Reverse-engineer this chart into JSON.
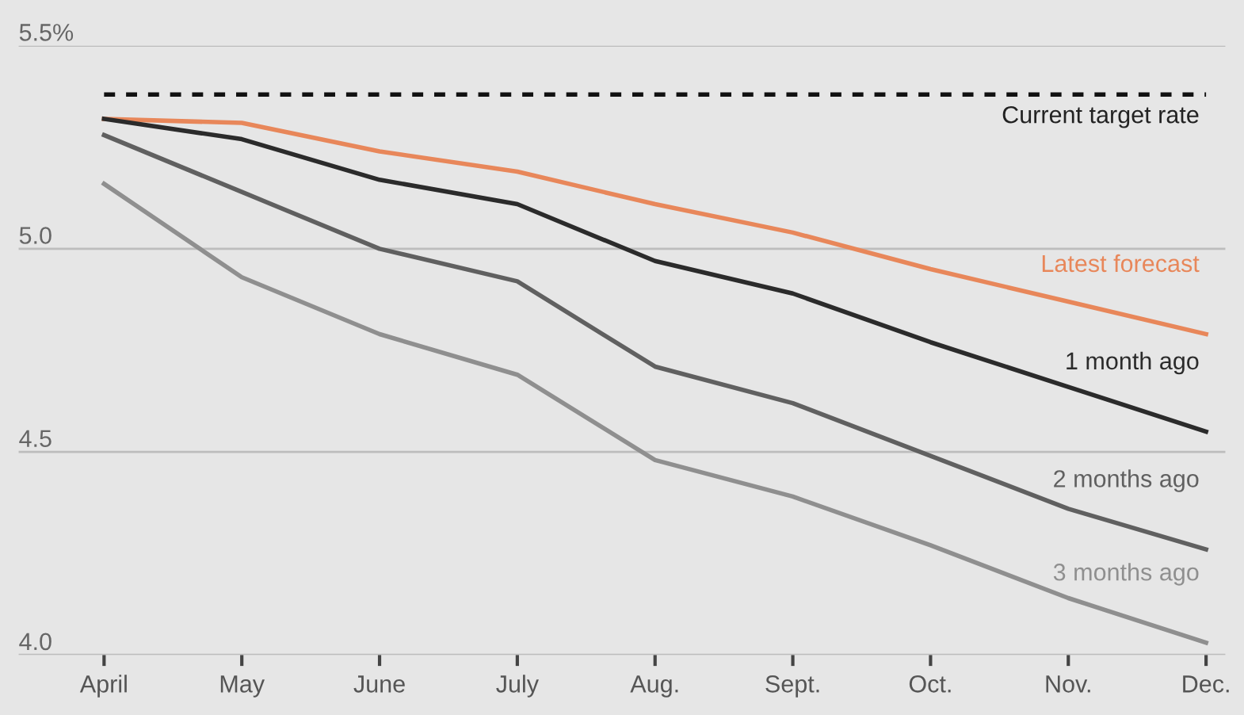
{
  "chart_data": {
    "type": "line",
    "categories": [
      "April",
      "May",
      "June",
      "July",
      "Aug.",
      "Sept.",
      "Oct.",
      "Nov.",
      "Dec."
    ],
    "series": [
      {
        "name": "Latest forecast",
        "color": "#e8875a",
        "values": [
          5.32,
          5.31,
          5.24,
          5.19,
          5.11,
          5.04,
          4.95,
          4.87,
          4.79
        ]
      },
      {
        "name": "1 month ago",
        "color": "#2b2b2b",
        "values": [
          5.32,
          5.27,
          5.17,
          5.11,
          4.97,
          4.89,
          4.77,
          4.66,
          4.55
        ]
      },
      {
        "name": "2 months ago",
        "color": "#606060",
        "values": [
          5.28,
          5.14,
          5.0,
          4.92,
          4.71,
          4.62,
          4.49,
          4.36,
          4.26
        ]
      },
      {
        "name": "3 months ago",
        "color": "#8f8f8f",
        "values": [
          5.16,
          4.93,
          4.79,
          4.69,
          4.48,
          4.39,
          4.27,
          4.14,
          4.03
        ]
      }
    ],
    "ylim": [
      4.0,
      5.5
    ],
    "yticks": [
      {
        "value": 4.0,
        "label": "4.0"
      },
      4.5,
      {
        "value": 5.0,
        "label": "5.0"
      },
      {
        "value": 5.5,
        "label": "5.5%"
      }
    ],
    "ref_lines": [
      {
        "axis": "y",
        "value": 5.38,
        "label": "Current target rate",
        "color": "#111111",
        "line_style": "dashed"
      }
    ],
    "grid": "y"
  }
}
